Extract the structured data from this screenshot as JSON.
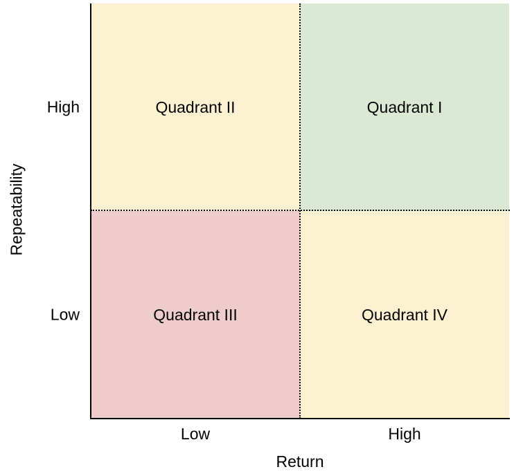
{
  "axes": {
    "x_title": "Return",
    "y_title": "Repeatability",
    "x_ticks": [
      "Low",
      "High"
    ],
    "y_ticks": [
      "High",
      "Low"
    ]
  },
  "quadrants": {
    "top_left": {
      "label": "Quadrant II",
      "color": "#fcf1d0"
    },
    "top_right": {
      "label": "Quadrant I",
      "color": "#dbe8d4"
    },
    "bottom_left": {
      "label": "Quadrant III",
      "color": "#eecccb"
    },
    "bottom_right": {
      "label": "Quadrant IV",
      "color": "#fcf1d0"
    }
  }
}
